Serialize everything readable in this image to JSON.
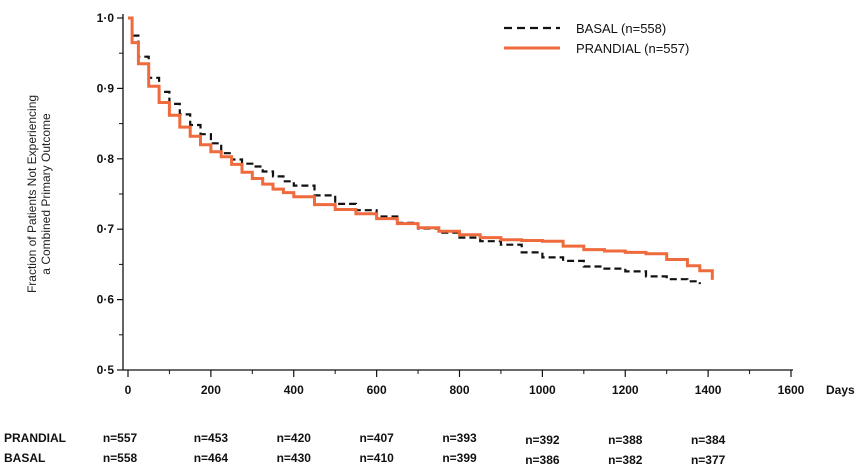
{
  "chart_data": {
    "type": "line",
    "ylabel_line1": "Fraction of Patients Not Experiencing",
    "ylabel_line2": "a Combined Primary Outcome",
    "xlabel": "Days",
    "xlim": [
      0,
      1600
    ],
    "ylim": [
      0.5,
      1.0
    ],
    "x_ticks": [
      0,
      200,
      400,
      600,
      800,
      1000,
      1200,
      1400,
      1600
    ],
    "x_tick_labels": [
      "0",
      "200",
      "400",
      "600",
      "800",
      "1000",
      "1200",
      "1400",
      "1600"
    ],
    "y_ticks": [
      0.5,
      0.6,
      0.7,
      0.8,
      0.9,
      1.0
    ],
    "y_tick_labels": [
      "0·5",
      "0·6",
      "0·7",
      "0·8",
      "0·9",
      "1·0"
    ],
    "grid": false,
    "legend_position": "top-right",
    "series": [
      {
        "name": "BASAL (n=558)",
        "style": "dashed",
        "color": "#111111",
        "x": [
          0,
          10,
          25,
          50,
          75,
          100,
          125,
          150,
          175,
          200,
          225,
          250,
          275,
          300,
          325,
          350,
          375,
          400,
          450,
          500,
          550,
          600,
          650,
          700,
          750,
          800,
          850,
          900,
          950,
          1000,
          1050,
          1100,
          1150,
          1200,
          1250,
          1300,
          1350,
          1380
        ],
        "y": [
          1.0,
          0.975,
          0.945,
          0.915,
          0.895,
          0.878,
          0.863,
          0.848,
          0.835,
          0.822,
          0.808,
          0.799,
          0.793,
          0.789,
          0.782,
          0.775,
          0.768,
          0.762,
          0.748,
          0.736,
          0.727,
          0.718,
          0.709,
          0.701,
          0.695,
          0.688,
          0.683,
          0.678,
          0.667,
          0.66,
          0.655,
          0.647,
          0.644,
          0.64,
          0.633,
          0.629,
          0.626,
          0.622
        ]
      },
      {
        "name": "PRANDIAL (n=557)",
        "style": "solid",
        "color": "#ef6a3c",
        "x": [
          0,
          10,
          25,
          50,
          75,
          100,
          125,
          150,
          175,
          200,
          225,
          250,
          275,
          300,
          325,
          350,
          375,
          400,
          450,
          500,
          550,
          600,
          650,
          700,
          750,
          800,
          850,
          900,
          950,
          1000,
          1050,
          1100,
          1150,
          1200,
          1250,
          1300,
          1350,
          1380,
          1410
        ],
        "y": [
          1.0,
          0.965,
          0.935,
          0.903,
          0.88,
          0.862,
          0.845,
          0.832,
          0.82,
          0.81,
          0.803,
          0.792,
          0.781,
          0.772,
          0.764,
          0.757,
          0.752,
          0.746,
          0.735,
          0.728,
          0.722,
          0.715,
          0.708,
          0.702,
          0.697,
          0.692,
          0.688,
          0.685,
          0.684,
          0.683,
          0.676,
          0.671,
          0.669,
          0.667,
          0.665,
          0.657,
          0.648,
          0.641,
          0.628
        ]
      }
    ],
    "risk_table": {
      "label_x": [
        -70,
        0,
        200,
        400,
        600,
        800,
        1000,
        1200,
        1400
      ],
      "rows": [
        {
          "label": "PRANDIAL",
          "counts": [
            "n=557",
            "n=453",
            "n=420",
            "n=407",
            "n=393",
            "n=392",
            "n=388",
            "n=384"
          ]
        },
        {
          "label": "BASAL",
          "counts": [
            "n=558",
            "n=464",
            "n=430",
            "n=410",
            "n=399",
            "n=386",
            "n=382",
            "n=377"
          ]
        }
      ]
    }
  }
}
